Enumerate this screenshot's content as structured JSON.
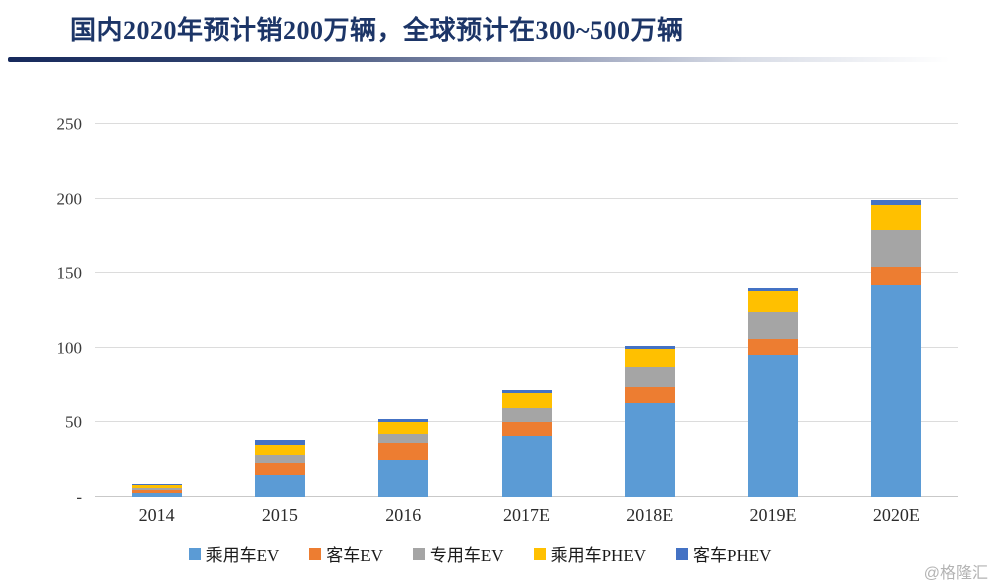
{
  "header": {
    "title": "国内2020年预计销200万辆，全球预计在300~500万辆"
  },
  "chart_data": {
    "type": "bar",
    "stacked": true,
    "categories": [
      "2014",
      "2015",
      "2016",
      "2017E",
      "2018E",
      "2019E",
      "2020E"
    ],
    "series": [
      {
        "name": "乘用车EV",
        "color": "#5B9BD5",
        "values": [
          3,
          15,
          25,
          41,
          63,
          95,
          142
        ]
      },
      {
        "name": "客车EV",
        "color": "#ED7D31",
        "values": [
          2,
          8,
          11,
          9,
          11,
          11,
          12
        ]
      },
      {
        "name": "专用车EV",
        "color": "#A5A5A5",
        "values": [
          1,
          5,
          6,
          10,
          13,
          18,
          25
        ]
      },
      {
        "name": "乘用车PHEV",
        "color": "#FFC000",
        "values": [
          2,
          7,
          8,
          10,
          12,
          14,
          17
        ]
      },
      {
        "name": "客车PHEV",
        "color": "#4472C4",
        "values": [
          1,
          3,
          2,
          2,
          2,
          2,
          3
        ]
      }
    ],
    "ylim": [
      0,
      250
    ],
    "y_ticks": [
      0,
      50,
      100,
      150,
      200,
      250
    ],
    "y_tick_labels": [
      "-",
      "50",
      "100",
      "150",
      "200",
      "250"
    ],
    "grid": true,
    "legend_position": "bottom"
  },
  "footer": {
    "watermark": "@格隆汇"
  }
}
